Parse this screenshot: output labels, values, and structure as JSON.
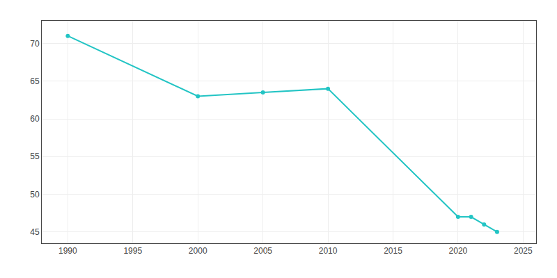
{
  "chart_data": {
    "type": "line",
    "x": [
      1990,
      2000,
      2005,
      2010,
      2020,
      2021,
      2022,
      2023
    ],
    "values": [
      71,
      63,
      63.5,
      64,
      47,
      47,
      46,
      45
    ],
    "color": "#22c4c4",
    "marker": "circle",
    "xlim": [
      1988,
      2026
    ],
    "ylim": [
      43.5,
      73
    ],
    "xticks": [
      1990,
      1995,
      2000,
      2005,
      2010,
      2015,
      2020,
      2025
    ],
    "yticks": [
      45,
      50,
      55,
      60,
      65,
      70
    ],
    "grid": true
  }
}
